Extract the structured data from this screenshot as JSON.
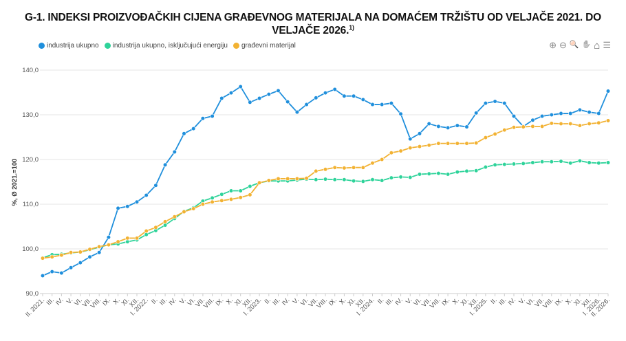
{
  "title": "G-1. INDEKSI PROIZVOĐAČKIH CIJENA GRAĐEVNOG MATERIJALA NA DOMAĆEM TRŽIŠTU OD VELJAČE 2021. DO VELJAČE 2026.",
  "title_footnote": "1)",
  "toolbar": {
    "zoom_in": "⊕",
    "zoom_out": "⊖",
    "zoom_select": "🔍",
    "pan": "✋",
    "home": "⌂",
    "menu": "☰"
  },
  "chart_data": {
    "type": "line",
    "title": "G-1. INDEKSI PROIZVOĐAČKIH CIJENA GRAĐEVNOG MATERIJALA NA DOMAĆEM TRŽIŠTU OD VELJAČE 2021. DO VELJAČE 2026.",
    "xlabel": "",
    "ylabel": "%, Ø 2021.=100",
    "ylim": [
      90,
      140
    ],
    "yticks": [
      "90,0",
      "100,0",
      "110,0",
      "120,0",
      "130,0",
      "140,0"
    ],
    "grid": true,
    "legend_position": "top-left",
    "categories": [
      "II. 2021.",
      "III.",
      "IV.",
      "V.",
      "VI.",
      "VII.",
      "VIII.",
      "IX.",
      "X.",
      "XI.",
      "XII.",
      "I. 2022.",
      "II.",
      "III.",
      "IV.",
      "V.",
      "VI.",
      "VII.",
      "VIII.",
      "IX.",
      "X.",
      "XI.",
      "XII.",
      "I. 2023.",
      "II.",
      "III.",
      "IV.",
      "V.",
      "VI.",
      "VII.",
      "VIII.",
      "IX.",
      "X.",
      "XI.",
      "XII.",
      "I. 2024.",
      "II.",
      "III.",
      "IV.",
      "V.",
      "VI.",
      "VII.",
      "VIII.",
      "IX.",
      "X.",
      "XI.",
      "XII.",
      "I. 2025.",
      "II.",
      "III.",
      "IV.",
      "V.",
      "VI.",
      "VII.",
      "VIII.",
      "IX.",
      "X.",
      "XI.",
      "XII.",
      "I. 2026.",
      "II. 2026."
    ],
    "series": [
      {
        "name": "industrija ukupno",
        "color": "#1f8fdc",
        "values": [
          94.0,
          94.9,
          94.6,
          95.8,
          96.9,
          98.2,
          99.2,
          102.6,
          109.1,
          109.5,
          110.5,
          112.0,
          114.2,
          118.8,
          121.7,
          125.8,
          126.9,
          129.2,
          129.7,
          133.7,
          134.9,
          136.3,
          132.8,
          133.7,
          134.6,
          135.4,
          132.9,
          130.6,
          132.3,
          133.8,
          134.9,
          135.7,
          134.2,
          134.2,
          133.4,
          132.3,
          132.3,
          132.6,
          130.2,
          124.6,
          125.8,
          128.0,
          127.4,
          127.1,
          127.6,
          127.3,
          130.4,
          132.6,
          133.0,
          132.6,
          129.7,
          127.4,
          128.8,
          129.7,
          130.0,
          130.3,
          130.3,
          131.1,
          130.6,
          130.3,
          135.3
        ]
      },
      {
        "name": "industrija ukupno, isključujući energiju",
        "color": "#2ed39a",
        "values": [
          98.0,
          98.7,
          98.8,
          99.1,
          99.3,
          99.8,
          100.4,
          100.9,
          101.1,
          101.6,
          102.0,
          103.2,
          104.1,
          105.3,
          106.8,
          108.4,
          109.2,
          110.7,
          111.4,
          112.2,
          113.0,
          113.0,
          114.0,
          114.8,
          115.2,
          115.2,
          115.2,
          115.4,
          115.6,
          115.5,
          115.6,
          115.5,
          115.5,
          115.2,
          115.1,
          115.5,
          115.3,
          115.9,
          116.1,
          116.0,
          116.7,
          116.8,
          116.9,
          116.7,
          117.2,
          117.4,
          117.5,
          118.3,
          118.8,
          118.9,
          119.0,
          119.1,
          119.3,
          119.5,
          119.5,
          119.6,
          119.2,
          119.7,
          119.3,
          119.2,
          119.3
        ]
      },
      {
        "name": "građevni materijal",
        "color": "#f2b233",
        "values": [
          97.9,
          98.2,
          98.6,
          99.2,
          99.3,
          99.9,
          100.5,
          100.9,
          101.6,
          102.4,
          102.4,
          104.0,
          104.8,
          106.1,
          107.2,
          108.3,
          109.0,
          110.0,
          110.5,
          110.8,
          111.1,
          111.5,
          112.1,
          114.8,
          115.3,
          115.7,
          115.7,
          115.7,
          115.8,
          117.4,
          117.8,
          118.2,
          118.1,
          118.2,
          118.2,
          119.2,
          120.0,
          121.5,
          121.9,
          122.6,
          122.9,
          123.2,
          123.6,
          123.6,
          123.6,
          123.6,
          123.7,
          124.9,
          125.7,
          126.6,
          127.2,
          127.3,
          127.4,
          127.4,
          128.1,
          128.0,
          128.0,
          127.6,
          128.0,
          128.2,
          128.7
        ]
      }
    ]
  }
}
